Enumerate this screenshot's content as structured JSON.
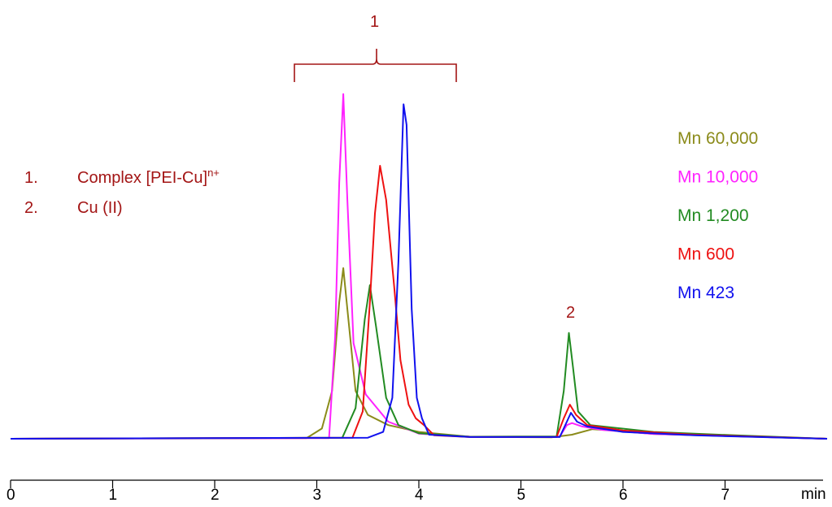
{
  "chart_data": {
    "type": "line",
    "title": "",
    "xlabel": "min",
    "ylabel": "",
    "xlim": [
      0,
      8
    ],
    "x_ticks": [
      "0",
      "1",
      "2",
      "3",
      "4",
      "5",
      "6",
      "7"
    ],
    "grid": false,
    "legend_position": "right",
    "series": [
      {
        "name": "Mn 60,000",
        "color": "#8b8b1a",
        "points": [
          [
            0,
            0
          ],
          [
            2.9,
            0.2
          ],
          [
            3.05,
            3
          ],
          [
            3.15,
            14
          ],
          [
            3.22,
            40
          ],
          [
            3.26,
            50
          ],
          [
            3.3,
            38
          ],
          [
            3.38,
            14
          ],
          [
            3.5,
            7
          ],
          [
            3.7,
            4
          ],
          [
            4.0,
            2
          ],
          [
            4.5,
            0.6
          ],
          [
            5.3,
            0.4
          ],
          [
            5.5,
            1.2
          ],
          [
            5.7,
            2.8
          ],
          [
            5.9,
            2.4
          ],
          [
            6.3,
            1.4
          ],
          [
            8,
            0
          ]
        ]
      },
      {
        "name": "Mn 10,000",
        "color": "#ff22ff",
        "points": [
          [
            0,
            0
          ],
          [
            3.12,
            0.2
          ],
          [
            3.18,
            30
          ],
          [
            3.22,
            75
          ],
          [
            3.26,
            101
          ],
          [
            3.3,
            70
          ],
          [
            3.36,
            28
          ],
          [
            3.48,
            13
          ],
          [
            3.7,
            5
          ],
          [
            4.0,
            1.5
          ],
          [
            4.5,
            0.6
          ],
          [
            5.38,
            0.6
          ],
          [
            5.45,
            4
          ],
          [
            5.5,
            4.6
          ],
          [
            5.6,
            3.6
          ],
          [
            5.8,
            2.6
          ],
          [
            6.3,
            1.4
          ],
          [
            8,
            0
          ]
        ]
      },
      {
        "name": "Mn 1,200",
        "color": "#228b22",
        "points": [
          [
            0,
            0
          ],
          [
            3.25,
            0.3
          ],
          [
            3.38,
            9
          ],
          [
            3.47,
            35
          ],
          [
            3.52,
            45
          ],
          [
            3.58,
            33
          ],
          [
            3.68,
            12
          ],
          [
            3.8,
            4
          ],
          [
            4.0,
            1.6
          ],
          [
            4.5,
            0.6
          ],
          [
            5.35,
            0.7
          ],
          [
            5.42,
            14
          ],
          [
            5.47,
            31
          ],
          [
            5.51,
            21
          ],
          [
            5.56,
            8
          ],
          [
            5.68,
            4
          ],
          [
            6.3,
            2
          ],
          [
            7.1,
            1
          ],
          [
            8,
            0
          ]
        ]
      },
      {
        "name": "Mn 600",
        "color": "#ee1111",
        "points": [
          [
            0,
            0
          ],
          [
            3.35,
            0.3
          ],
          [
            3.45,
            8
          ],
          [
            3.52,
            40
          ],
          [
            3.57,
            66
          ],
          [
            3.62,
            80
          ],
          [
            3.68,
            70
          ],
          [
            3.76,
            44
          ],
          [
            3.82,
            23
          ],
          [
            3.9,
            10
          ],
          [
            3.97,
            6
          ],
          [
            4.05,
            4
          ],
          [
            4.15,
            1
          ],
          [
            4.5,
            0.5
          ],
          [
            5.35,
            0.5
          ],
          [
            5.42,
            6
          ],
          [
            5.48,
            10
          ],
          [
            5.54,
            7
          ],
          [
            5.65,
            4
          ],
          [
            6.0,
            2.4
          ],
          [
            6.7,
            1.2
          ],
          [
            8,
            0
          ]
        ]
      },
      {
        "name": "Mn 423",
        "color": "#1111ee",
        "points": [
          [
            0,
            0
          ],
          [
            3.5,
            0.3
          ],
          [
            3.65,
            2
          ],
          [
            3.74,
            12
          ],
          [
            3.8,
            52
          ],
          [
            3.85,
            98
          ],
          [
            3.88,
            92
          ],
          [
            3.93,
            38
          ],
          [
            3.98,
            12
          ],
          [
            4.03,
            6
          ],
          [
            4.1,
            1.2
          ],
          [
            4.5,
            0.5
          ],
          [
            5.38,
            0.5
          ],
          [
            5.45,
            5
          ],
          [
            5.49,
            7.6
          ],
          [
            5.55,
            5
          ],
          [
            5.65,
            3.6
          ],
          [
            6.0,
            2
          ],
          [
            6.7,
            1
          ],
          [
            8,
            0
          ]
        ]
      }
    ],
    "annotations": {
      "bracket_label": "1",
      "peak2_label": "2",
      "notes": [
        {
          "number": "1.",
          "text": "Complex [PEI-Cu]",
          "superscript": "n+"
        },
        {
          "number": "2.",
          "text": "Cu (II)",
          "superscript": ""
        }
      ]
    }
  }
}
